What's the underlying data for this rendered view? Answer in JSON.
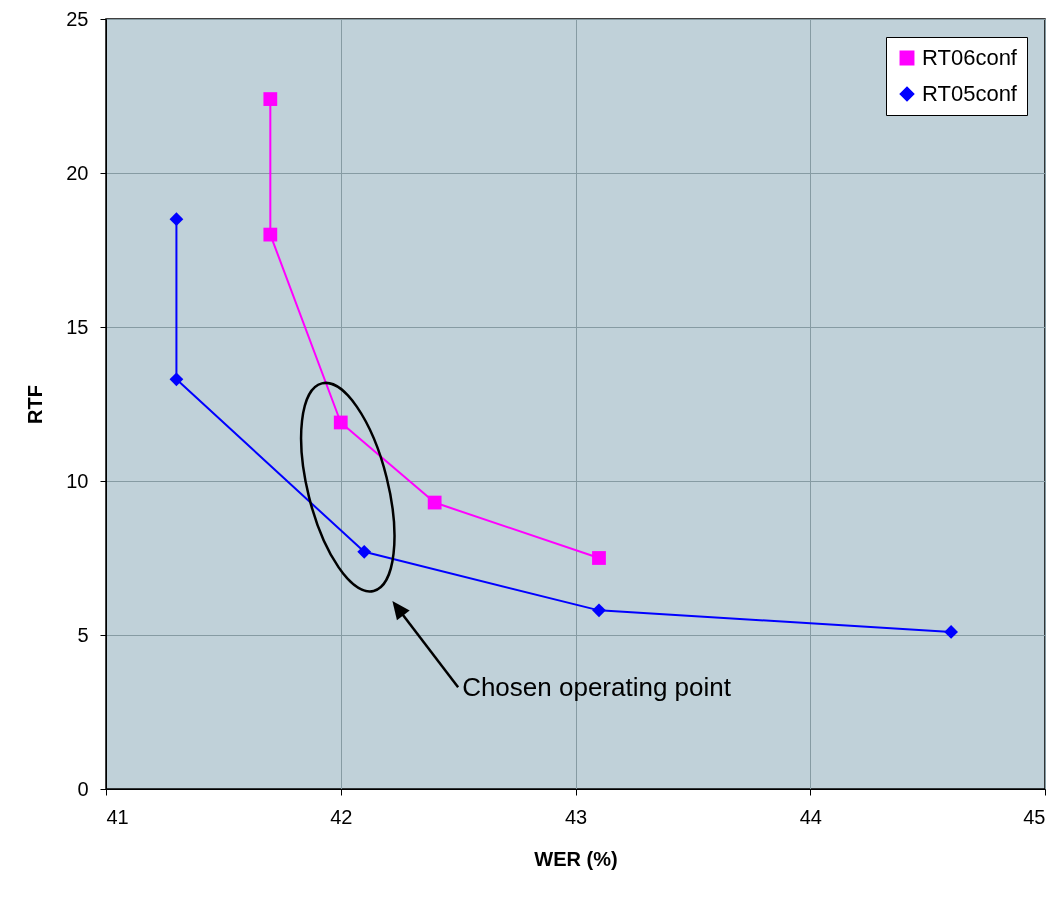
{
  "chart_data": {
    "type": "line",
    "xlabel": "WER (%)",
    "ylabel": "RTF",
    "xlim": [
      41,
      45
    ],
    "xticks": [
      41,
      42,
      43,
      44,
      45
    ],
    "ylim": [
      0,
      25
    ],
    "yticks": [
      0,
      5,
      10,
      15,
      20,
      25
    ],
    "grid": true,
    "legend": "top right",
    "line_style": "solid",
    "series": [
      {
        "name": "RT06conf",
        "color": "#ff00ff",
        "marker": "square",
        "x": [
          41.7,
          41.7,
          42.0,
          42.4,
          43.1
        ],
        "values": [
          22.4,
          18.0,
          11.9,
          9.3,
          7.5
        ]
      },
      {
        "name": "RT05conf",
        "color": "#0000ff",
        "marker": "diamond",
        "x": [
          41.3,
          41.3,
          42.1,
          43.1,
          44.6
        ],
        "values": [
          18.5,
          13.3,
          7.7,
          5.8,
          5.1
        ]
      }
    ],
    "annotations": [
      "Chosen operating point"
    ]
  }
}
